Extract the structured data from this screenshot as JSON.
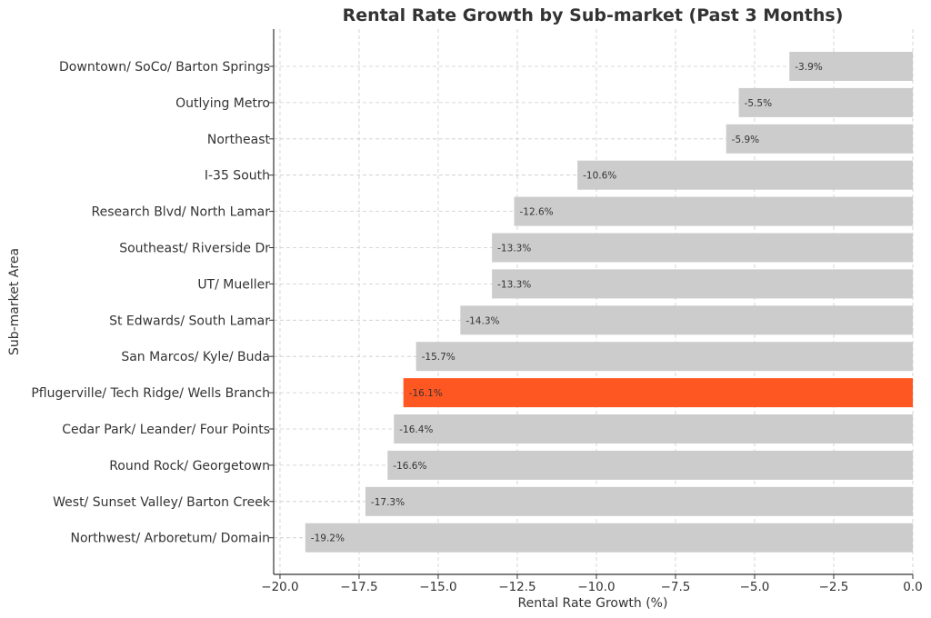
{
  "chart_data": {
    "type": "bar",
    "orientation": "horizontal",
    "title": "Rental Rate Growth by Sub-market (Past 3 Months)",
    "xlabel": "Rental Rate Growth (%)",
    "ylabel": "Sub-market Area",
    "xlim": [
      -20.2,
      0.0
    ],
    "xticks": [
      -20.0,
      -17.5,
      -15.0,
      -12.5,
      -10.0,
      -7.5,
      -5.0,
      -2.5,
      0.0
    ],
    "xtick_labels": [
      "−20.0",
      "−17.5",
      "−15.0",
      "−12.5",
      "−10.0",
      "−7.5",
      "−5.0",
      "−2.5",
      "0.0"
    ],
    "grid": true,
    "categories": [
      "Downtown/ SoCo/ Barton Springs",
      "Outlying Metro",
      "Northeast",
      "I-35 South",
      "Research Blvd/ North Lamar",
      "Southeast/ Riverside Dr",
      "UT/ Mueller",
      "St Edwards/ South Lamar",
      "San Marcos/ Kyle/ Buda",
      "Pflugerville/ Tech Ridge/ Wells Branch",
      "Cedar Park/ Leander/ Four Points",
      "Round Rock/ Georgetown",
      "West/ Sunset Valley/ Barton Creek",
      "Northwest/ Arboretum/ Domain"
    ],
    "values": [
      -3.9,
      -5.5,
      -5.9,
      -10.6,
      -12.6,
      -13.3,
      -13.3,
      -14.3,
      -15.7,
      -16.1,
      -16.4,
      -16.6,
      -17.3,
      -19.2
    ],
    "data_labels": [
      "-3.9%",
      "-5.5%",
      "-5.9%",
      "-10.6%",
      "-12.6%",
      "-13.3%",
      "-13.3%",
      "-14.3%",
      "-15.7%",
      "-16.1%",
      "-16.4%",
      "-16.6%",
      "-17.3%",
      "-19.2%"
    ],
    "highlight_index": 9,
    "colors": {
      "default": "#cccccc",
      "highlight": "#ff5722",
      "text": "#333333"
    }
  }
}
